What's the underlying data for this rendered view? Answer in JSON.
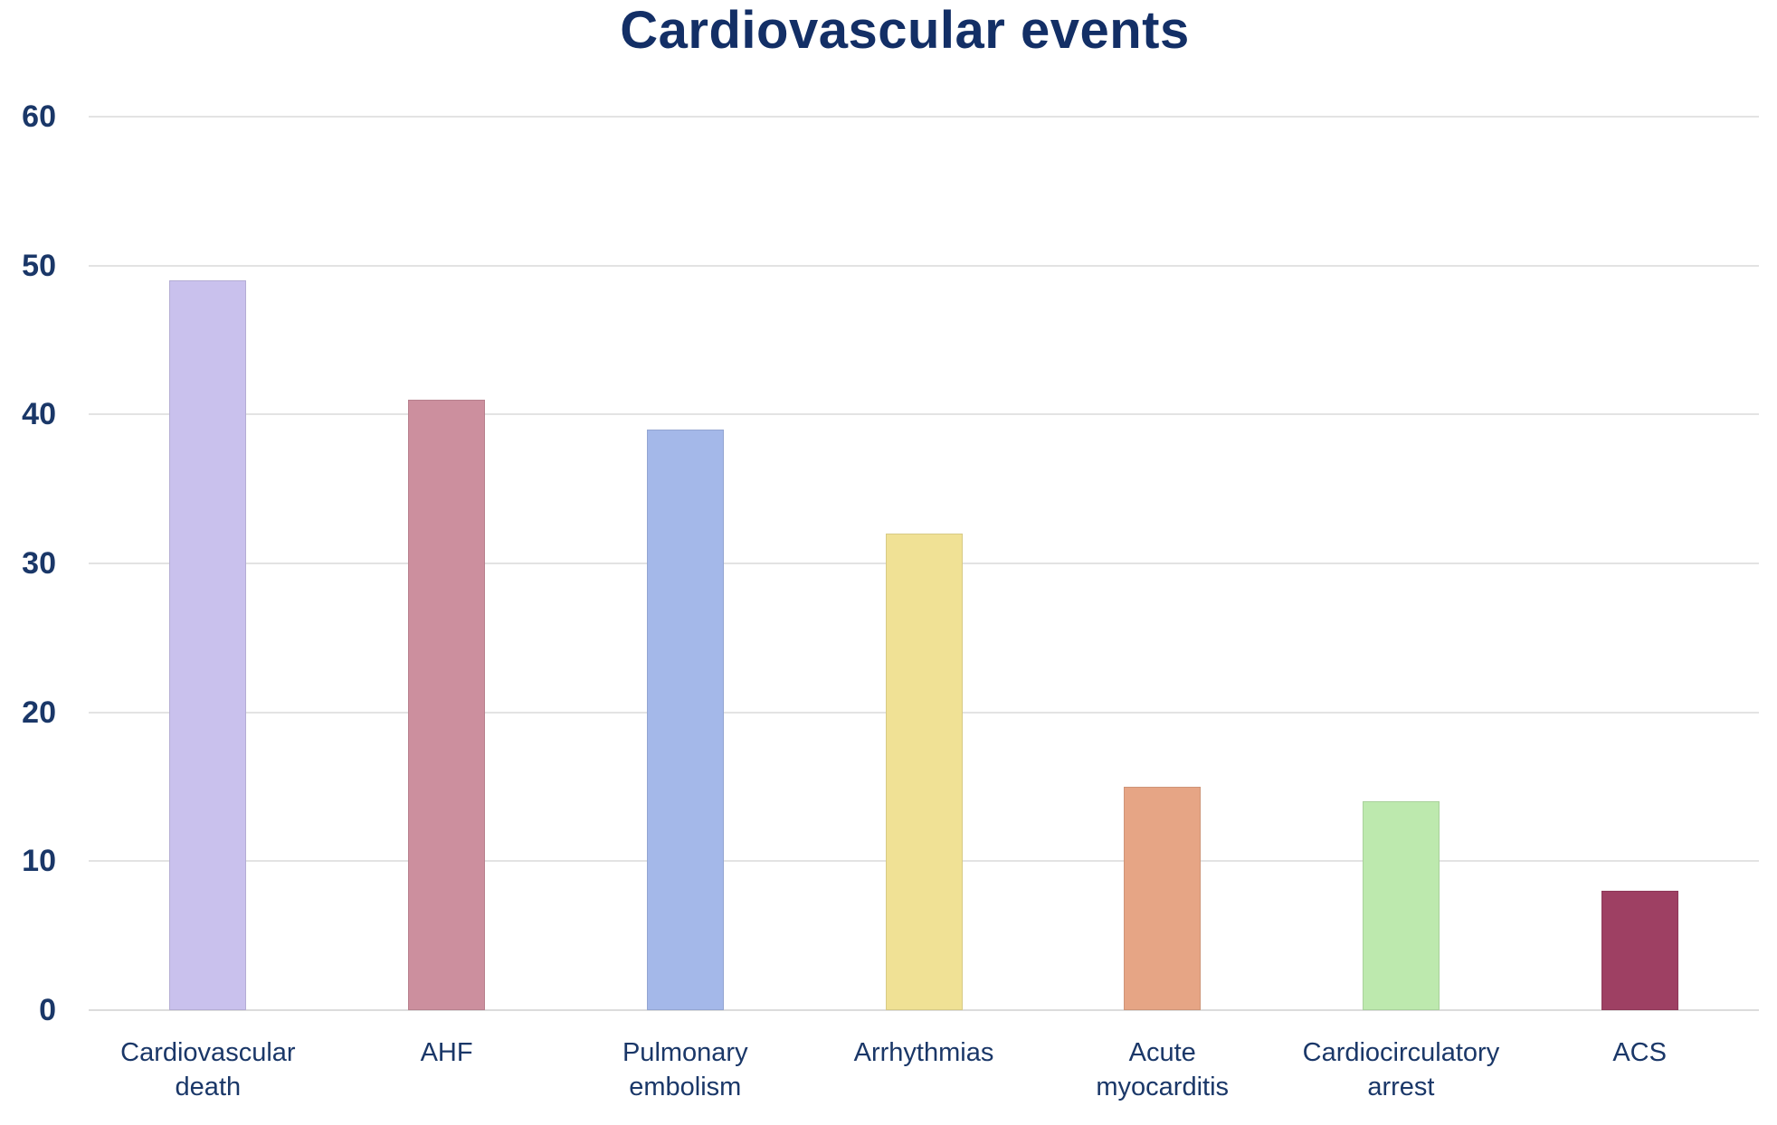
{
  "chart_data": {
    "type": "bar",
    "title": "Cardiovascular events",
    "categories": [
      "Cardiovascular death",
      "AHF",
      "Pulmonary embolism",
      "Arrhythmias",
      "Acute myocarditis",
      "Cardiocirculatory arrest",
      "ACS"
    ],
    "category_lines": [
      [
        "Cardiovascular",
        "death"
      ],
      [
        "AHF"
      ],
      [
        "Pulmonary",
        "embolism"
      ],
      [
        "Arrhythmias"
      ],
      [
        "Acute",
        "myocarditis"
      ],
      [
        "Cardiocirculatory",
        "arrest"
      ],
      [
        "ACS"
      ]
    ],
    "values": [
      49,
      41,
      39,
      32,
      15,
      14,
      8
    ],
    "bar_colors": [
      "#c9c1ed",
      "#cc8f9e",
      "#a4b8e9",
      "#f0e195",
      "#e6a585",
      "#bde9ae",
      "#9e4063"
    ],
    "xlabel": "",
    "ylabel": "",
    "ylim": [
      0,
      60
    ],
    "yticks": [
      0,
      10,
      20,
      30,
      40,
      50,
      60
    ],
    "grid": true,
    "legend": false,
    "colors": {
      "title_text": "#132f66",
      "axis_text": "#1a3768",
      "gridline": "#e3e3e3",
      "baseline": "#dcdcdc",
      "background": "#ffffff"
    }
  }
}
